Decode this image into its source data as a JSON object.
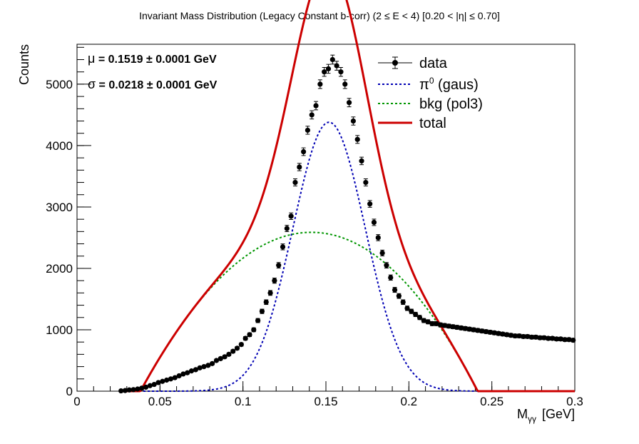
{
  "chart_data": {
    "type": "scatter",
    "title": "Invariant Mass Distribution (Legacy Constant b-corr)   (2 ≤ E < 4)   [0.20 < |η| ≤ 0.70]",
    "xlabel": "M",
    "xlabel_sub": "γγ",
    "xlabel_unit": "[GeV]",
    "ylabel": "Counts",
    "xlim": [
      0,
      0.3
    ],
    "ylim": [
      0,
      5650
    ],
    "x_ticks": [
      0,
      0.05,
      0.1,
      0.15,
      0.2,
      0.25,
      0.3
    ],
    "x_tick_labels": [
      "0",
      "0.05",
      "0.1",
      "0.15",
      "0.2",
      "0.25",
      "0.3"
    ],
    "y_ticks": [
      0,
      1000,
      2000,
      3000,
      4000,
      5000
    ],
    "y_tick_labels": [
      "0",
      "1000",
      "2000",
      "3000",
      "4000",
      "5000"
    ],
    "grid": false,
    "legend_position": "top-right",
    "stats": [
      {
        "symbol": "μ",
        "text": " = 0.1519  ± 0.0001 GeV"
      },
      {
        "symbol": "σ",
        "text": " = 0.0218  ± 0.0001 GeV"
      }
    ],
    "series": [
      {
        "name": "data",
        "kind": "points",
        "color": "#000000",
        "x": [
          0.0265,
          0.029,
          0.0315,
          0.034,
          0.0365,
          0.039,
          0.0415,
          0.044,
          0.0465,
          0.049,
          0.0515,
          0.054,
          0.0565,
          0.059,
          0.0615,
          0.064,
          0.0665,
          0.069,
          0.0715,
          0.074,
          0.0765,
          0.079,
          0.0815,
          0.084,
          0.0865,
          0.089,
          0.0915,
          0.094,
          0.0965,
          0.099,
          0.1015,
          0.104,
          0.1065,
          0.109,
          0.1115,
          0.114,
          0.1165,
          0.119,
          0.1215,
          0.124,
          0.1265,
          0.129,
          0.1315,
          0.134,
          0.1365,
          0.139,
          0.1415,
          0.144,
          0.1465,
          0.149,
          0.1515,
          0.154,
          0.1565,
          0.159,
          0.1615,
          0.164,
          0.1665,
          0.169,
          0.1715,
          0.174,
          0.1765,
          0.179,
          0.1815,
          0.184,
          0.1865,
          0.189,
          0.1915,
          0.194,
          0.1965,
          0.199,
          0.2015,
          0.204,
          0.2065,
          0.209,
          0.2115,
          0.214,
          0.2165,
          0.219,
          0.2215,
          0.224,
          0.2265,
          0.229,
          0.2315,
          0.234,
          0.2365,
          0.239,
          0.2415,
          0.244,
          0.2465,
          0.249,
          0.2515,
          0.254,
          0.2565,
          0.259,
          0.2615,
          0.264,
          0.2665,
          0.269,
          0.2715,
          0.274,
          0.2765,
          0.279,
          0.2815,
          0.284,
          0.2865,
          0.289,
          0.2915,
          0.294,
          0.2965,
          0.299
        ],
        "y": [
          5,
          10,
          20,
          25,
          35,
          50,
          65,
          90,
          110,
          140,
          160,
          180,
          200,
          220,
          250,
          280,
          300,
          330,
          350,
          380,
          400,
          420,
          450,
          500,
          530,
          560,
          600,
          650,
          700,
          760,
          860,
          920,
          1000,
          1150,
          1300,
          1450,
          1600,
          1800,
          2050,
          2350,
          2650,
          2850,
          3400,
          3650,
          3900,
          4250,
          4500,
          4650,
          5000,
          5200,
          5250,
          5400,
          5300,
          5200,
          5000,
          4700,
          4400,
          4100,
          3750,
          3400,
          3050,
          2750,
          2500,
          2250,
          2050,
          1850,
          1650,
          1550,
          1450,
          1350,
          1300,
          1250,
          1200,
          1150,
          1130,
          1100,
          1100,
          1080,
          1070,
          1060,
          1050,
          1040,
          1030,
          1020,
          1010,
          1000,
          990,
          980,
          970,
          960,
          950,
          940,
          930,
          920,
          910,
          900,
          900,
          890,
          890,
          880,
          880,
          870,
          870,
          860,
          860,
          850,
          850,
          840,
          840,
          830
        ]
      },
      {
        "name": "π⁰ (gaus)",
        "label_main": "π",
        "label_sup": "0",
        "label_rest": " (gaus)",
        "kind": "gaus",
        "color": "#0000b4",
        "amplitude": 4380,
        "mean": 0.1519,
        "sigma": 0.0218
      },
      {
        "name": "bkg (pol3)",
        "kind": "pol3",
        "color": "#009600",
        "x_range": [
          0.026,
          0.3
        ],
        "coefficients": [
          -2226.3,
          66856,
          -222660,
          -66510
        ]
      },
      {
        "name": "total",
        "kind": "sum",
        "color": "#cc0000",
        "x_range": [
          0.026,
          0.3
        ]
      }
    ]
  }
}
